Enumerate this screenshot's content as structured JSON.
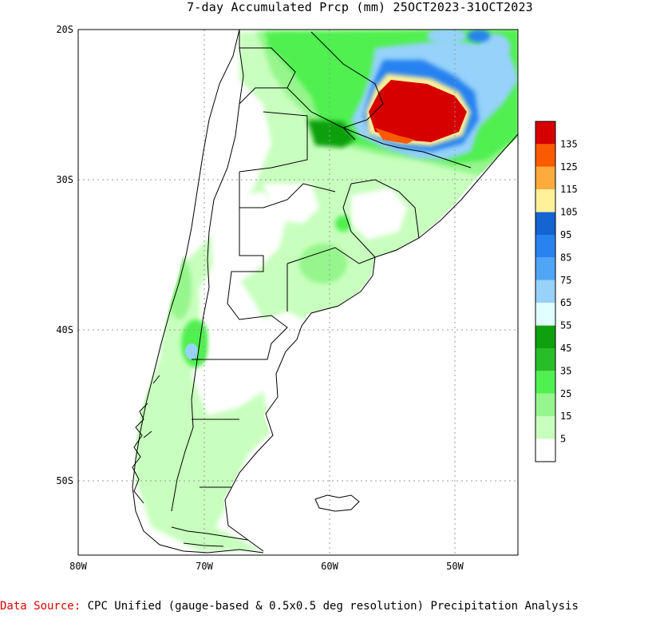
{
  "title": "7-day Accumulated Prcp (mm) 25OCT2023-31OCT2023",
  "axes": {
    "lat_ticks": [
      "20S",
      "30S",
      "40S",
      "50S"
    ],
    "lon_ticks": [
      "80W",
      "70W",
      "60W",
      "50W"
    ]
  },
  "legend": {
    "labels": [
      "135",
      "125",
      "115",
      "105",
      "95",
      "85",
      "75",
      "65",
      "55",
      "45",
      "35",
      "25",
      "15",
      "5"
    ],
    "colors": [
      "#d60000",
      "#fa5a00",
      "#fcab3c",
      "#fff09a",
      "#1464d2",
      "#2882f0",
      "#50a5f5",
      "#96d2fa",
      "#e1ffff",
      "#0fa00f",
      "#28be28",
      "#50f050",
      "#96f58c",
      "#c8ffbe",
      "#ffffff"
    ]
  },
  "source": {
    "label": "Data Source:",
    "text": " CPC Unified (gauge-based & 0.5x0.5 deg resolution) Precipitation Analysis"
  },
  "chart_data": {
    "type": "heatmap",
    "title": "7-day Accumulated Prcp (mm) 25OCT2023-31OCT2023",
    "x_axis": "longitude",
    "xlim": [
      "80W",
      "45W"
    ],
    "y_axis": "latitude",
    "ylim": [
      "20S",
      "55S"
    ],
    "levels_mm": [
      5,
      15,
      25,
      35,
      45,
      55,
      65,
      75,
      85,
      95,
      105,
      115,
      125,
      135
    ],
    "grid": true
  }
}
